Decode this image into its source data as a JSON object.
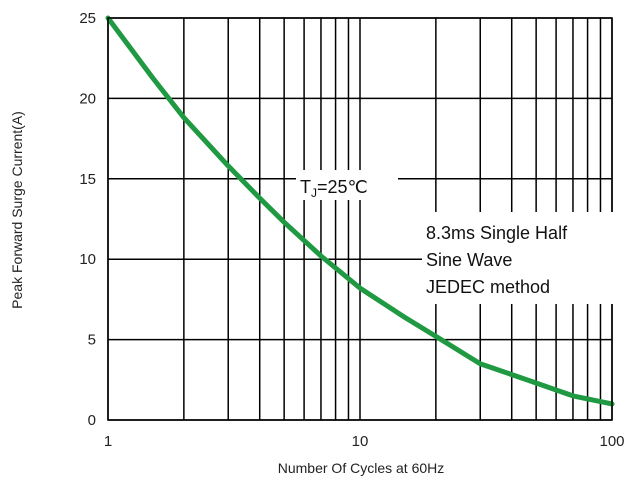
{
  "chart_data": {
    "type": "line",
    "title": "",
    "xlabel": "Number Of Cycles at 60Hz",
    "ylabel": "Peak Forward Surge Current(A)",
    "x_scale": "log",
    "xlim": [
      1,
      100
    ],
    "ylim": [
      0,
      25
    ],
    "x_ticks": [
      1,
      10,
      100
    ],
    "x_tick_labels": [
      "1",
      "10",
      "100"
    ],
    "y_ticks": [
      0,
      5,
      10,
      15,
      20,
      25
    ],
    "y_tick_labels": [
      "0",
      "5",
      "10",
      "15",
      "20",
      "25"
    ],
    "grid": true,
    "series": [
      {
        "color": "#1f9a43",
        "x": [
          1,
          1.5,
          2,
          3,
          4,
          5,
          7,
          10,
          15,
          20,
          30,
          50,
          70,
          100
        ],
        "y": [
          25,
          21.3,
          18.8,
          15.8,
          13.8,
          12.3,
          10.2,
          8.2,
          6.4,
          5.2,
          3.5,
          2.3,
          1.5,
          1.0
        ]
      }
    ],
    "annotations": {
      "tj_main": "T",
      "tj_sub": "J",
      "tj_value": "=25℃",
      "method_lines": [
        "8.3ms Single Half",
        "Sine Wave",
        "JEDEC method"
      ]
    }
  }
}
